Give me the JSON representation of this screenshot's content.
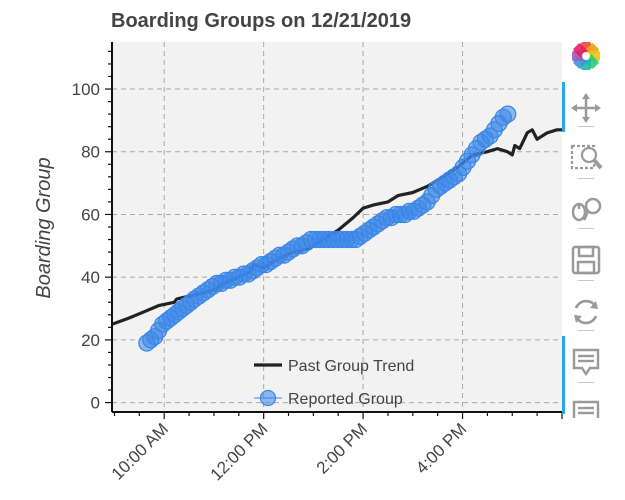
{
  "chart_data": {
    "type": "line+scatter",
    "title": "Boarding Groups on 12/21/2019",
    "ylabel": "Boarding Group",
    "xlabel": "",
    "x_unit": "hours (24h clock)",
    "xlim": [
      8.95,
      18.0
    ],
    "ylim": [
      -3,
      115
    ],
    "grid": true,
    "xticks": [
      {
        "value": 10,
        "label": "10:00 AM"
      },
      {
        "value": 12,
        "label": "12:00 PM"
      },
      {
        "value": 14,
        "label": "2:00 PM"
      },
      {
        "value": 16,
        "label": "4:00 PM"
      }
    ],
    "yticks": [
      {
        "value": 0,
        "label": "0"
      },
      {
        "value": 20,
        "label": "20"
      },
      {
        "value": 40,
        "label": "40"
      },
      {
        "value": 60,
        "label": "60"
      },
      {
        "value": 80,
        "label": "80"
      },
      {
        "value": 100,
        "label": "100"
      }
    ],
    "series": [
      {
        "name": "Past Group Trend",
        "kind": "line",
        "color": "#222222",
        "x": [
          8.95,
          9.3,
          9.6,
          9.9,
          10.2,
          10.25,
          10.5,
          10.8,
          11.0,
          11.2,
          11.5,
          11.75,
          11.8,
          12.0,
          12.1,
          12.3,
          12.6,
          12.9,
          13.2,
          13.5,
          13.8,
          14.0,
          14.2,
          14.5,
          14.7,
          15.0,
          15.3,
          15.6,
          15.9,
          16.2,
          16.5,
          16.7,
          16.9,
          17.0,
          17.05,
          17.15,
          17.3,
          17.4,
          17.5,
          17.7,
          17.9,
          18.0
        ],
        "y": [
          25,
          27,
          29,
          31,
          32,
          33,
          34,
          35,
          36,
          38,
          40,
          42,
          44,
          43,
          44,
          46,
          48,
          49,
          52,
          55,
          59,
          62,
          63,
          64,
          66,
          67,
          69,
          72,
          75,
          79,
          80,
          81,
          80,
          79,
          82,
          81,
          86,
          87,
          84,
          86,
          87,
          87
        ]
      },
      {
        "name": "Reported Group",
        "kind": "scatter",
        "color": "#3a86e8",
        "x": [
          9.65,
          9.73,
          9.81,
          9.89,
          9.97,
          10.05,
          10.13,
          10.21,
          10.29,
          10.37,
          10.45,
          10.53,
          10.61,
          10.7,
          10.79,
          10.88,
          10.97,
          11.06,
          11.15,
          11.24,
          11.33,
          11.42,
          11.51,
          11.6,
          11.69,
          11.78,
          11.87,
          11.96,
          12.05,
          12.14,
          12.23,
          12.32,
          12.41,
          12.5,
          12.59,
          12.68,
          12.77,
          12.86,
          12.95,
          13.04,
          13.13,
          13.22,
          13.31,
          13.4,
          13.49,
          13.58,
          13.67,
          13.76,
          13.85,
          13.94,
          14.03,
          14.12,
          14.21,
          14.3,
          14.39,
          14.48,
          14.57,
          14.66,
          14.75,
          14.84,
          14.93,
          15.02,
          15.11,
          15.2,
          15.29,
          15.38,
          15.47,
          15.56,
          15.65,
          15.74,
          15.83,
          15.92,
          16.01,
          16.1,
          16.19,
          16.28,
          16.37,
          16.46,
          16.55,
          16.64,
          16.73,
          16.82,
          16.91
        ],
        "y": [
          19,
          20,
          21,
          23,
          25,
          26,
          27,
          28,
          29,
          30,
          31,
          32,
          33,
          34,
          35,
          36,
          37,
          38,
          38,
          39,
          39,
          40,
          40,
          41,
          41,
          42,
          43,
          44,
          44,
          45,
          46,
          47,
          47,
          48,
          49,
          50,
          50,
          51,
          52,
          52,
          52,
          52,
          52,
          52,
          52,
          52,
          52,
          52,
          52,
          53,
          54,
          55,
          56,
          57,
          58,
          59,
          59,
          60,
          60,
          60,
          61,
          61,
          62,
          63,
          64,
          66,
          68,
          69,
          70,
          71,
          72,
          73,
          75,
          77,
          79,
          81,
          83,
          84,
          85,
          87,
          89,
          91,
          92
        ]
      }
    ],
    "legend": {
      "placement": "bottom-center",
      "items": [
        {
          "label": "Past Group Trend",
          "kind": "line"
        },
        {
          "label": "Reported Group",
          "kind": "circle"
        }
      ]
    }
  },
  "toolbar": {
    "tools": [
      {
        "name": "bokeh-logo-icon",
        "active": false
      },
      {
        "name": "pan-icon",
        "active": true
      },
      {
        "name": "box-zoom-icon",
        "active": false
      },
      {
        "name": "wheel-zoom-icon",
        "active": false
      },
      {
        "name": "save-icon",
        "active": false
      },
      {
        "name": "reset-icon",
        "active": false
      },
      {
        "name": "hover-icon",
        "active": true
      },
      {
        "name": "hover-icon-2",
        "active": false
      }
    ]
  },
  "colors": {
    "plot_bg": "#f2f2f2",
    "grid": "#a8a8a8",
    "line": "#222222",
    "marker": "#3a86e8",
    "accent": "#26aae1"
  }
}
